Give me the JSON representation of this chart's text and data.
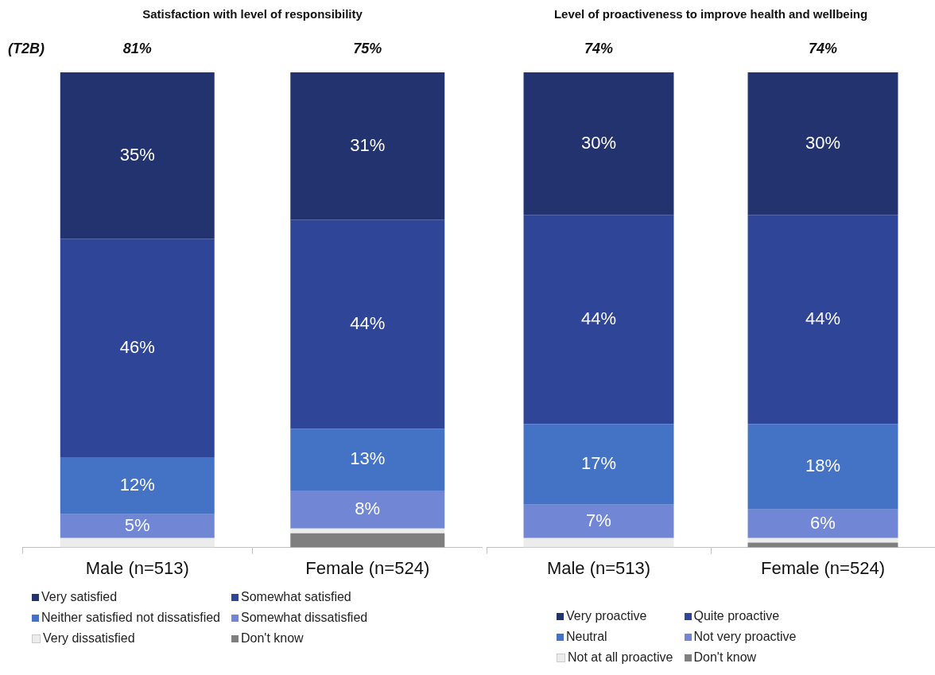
{
  "chart_data": [
    {
      "type": "bar",
      "title": "Satisfaction with level of responsibility",
      "stacked": true,
      "categories": [
        "Male (n=513)",
        "Female (n=524)"
      ],
      "ylim": [
        0,
        100
      ],
      "tick_labels": "x",
      "legend": "bottom",
      "annotations": [
        "(T2B)",
        "81%",
        "75%"
      ],
      "series": [
        {
          "name": "Don't know",
          "color": "#7f7f7f",
          "values": [
            0,
            3
          ],
          "value_labels": [
            null,
            null
          ]
        },
        {
          "name": "Very dissatisfied",
          "color": "#ececec",
          "values": [
            2,
            1
          ],
          "value_labels": [
            null,
            null
          ]
        },
        {
          "name": "Somewhat dissatisfied",
          "color": "#7187d6",
          "values": [
            5,
            8
          ],
          "value_labels": [
            "5%",
            "8%"
          ]
        },
        {
          "name": "Neither satisfied not dissatisfied",
          "color": "#4472c4",
          "values": [
            12,
            13
          ],
          "value_labels": [
            "12%",
            "13%"
          ]
        },
        {
          "name": "Somewhat satisfied",
          "color": "#2f4598",
          "values": [
            46,
            44
          ],
          "value_labels": [
            "46%",
            "44%"
          ]
        },
        {
          "name": "Very satisfied",
          "color": "#23336f",
          "values": [
            35,
            31
          ],
          "value_labels": [
            "35%",
            "31%"
          ]
        }
      ]
    },
    {
      "type": "bar",
      "title": "Level of proactiveness to improve health and wellbeing",
      "stacked": true,
      "categories": [
        "Male (n=513)",
        "Female (n=524)"
      ],
      "ylim": [
        0,
        100
      ],
      "tick_labels": "x",
      "legend": "bottom",
      "annotations": [
        "74%",
        "74%"
      ],
      "series": [
        {
          "name": "Don't know",
          "color": "#7f7f7f",
          "values": [
            0,
            1
          ],
          "value_labels": [
            null,
            null
          ]
        },
        {
          "name": "Not at all proactive",
          "color": "#ececec",
          "values": [
            2,
            1
          ],
          "value_labels": [
            null,
            null
          ]
        },
        {
          "name": "Not very proactive",
          "color": "#7187d6",
          "values": [
            7,
            6
          ],
          "value_labels": [
            "7%",
            "6%"
          ]
        },
        {
          "name": "Neutral",
          "color": "#4472c4",
          "values": [
            17,
            18
          ],
          "value_labels": [
            "17%",
            "18%"
          ]
        },
        {
          "name": "Quite proactive",
          "color": "#2f4598",
          "values": [
            44,
            44
          ],
          "value_labels": [
            "44%",
            "44%"
          ]
        },
        {
          "name": "Very proactive",
          "color": "#23336f",
          "values": [
            30,
            30
          ],
          "value_labels": [
            "30%",
            "30%"
          ]
        }
      ]
    }
  ]
}
